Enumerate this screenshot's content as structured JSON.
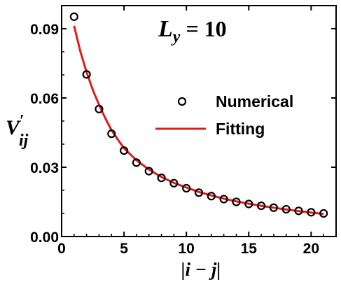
{
  "chart_data": {
    "type": "scatter",
    "annotation": {
      "main": "L",
      "sub": "y",
      "rest": " = 10"
    },
    "xlabel": "|i − j|",
    "ylabel": {
      "main": "V",
      "prime": "′",
      "sub": "ij"
    },
    "xlim": [
      0,
      22
    ],
    "ylim": [
      0,
      0.1
    ],
    "xticks": [
      0,
      5,
      10,
      15,
      20
    ],
    "xtick_labels": [
      "0",
      "5",
      "10",
      "15",
      "20"
    ],
    "yticks": [
      0,
      0.03,
      0.06,
      0.09
    ],
    "ytick_labels": [
      "0.00",
      "0.03",
      "0.06",
      "0.09"
    ],
    "grid": false,
    "legend": {
      "placement": "center-right"
    },
    "series": [
      {
        "name": "Numerical",
        "kind": "scatter",
        "marker": "open-circle",
        "color": "#000000",
        "x": [
          1,
          2,
          3,
          4,
          5,
          6,
          7,
          8,
          9,
          10,
          11,
          12,
          13,
          14,
          15,
          16,
          17,
          18,
          19,
          20,
          21
        ],
        "y": [
          0.0952,
          0.0702,
          0.0552,
          0.0445,
          0.0372,
          0.032,
          0.0283,
          0.0254,
          0.0231,
          0.0209,
          0.019,
          0.0175,
          0.0162,
          0.015,
          0.0141,
          0.0133,
          0.0125,
          0.0118,
          0.0111,
          0.0105,
          0.01
        ]
      },
      {
        "name": "Fitting",
        "kind": "line",
        "color": "#e41a1a",
        "x": [
          1,
          1.5,
          2,
          2.5,
          3,
          3.5,
          4,
          4.5,
          5,
          6,
          7,
          8,
          9,
          10,
          11,
          12,
          13,
          14,
          15,
          16,
          17,
          18,
          19,
          20,
          21
        ],
        "y": [
          0.0912,
          0.0802,
          0.0712,
          0.0635,
          0.057,
          0.0512,
          0.046,
          0.042,
          0.0382,
          0.033,
          0.029,
          0.0258,
          0.0232,
          0.0212,
          0.0193,
          0.0178,
          0.0164,
          0.0152,
          0.0142,
          0.0133,
          0.0125,
          0.0117,
          0.011,
          0.0104,
          0.0098
        ]
      }
    ]
  }
}
